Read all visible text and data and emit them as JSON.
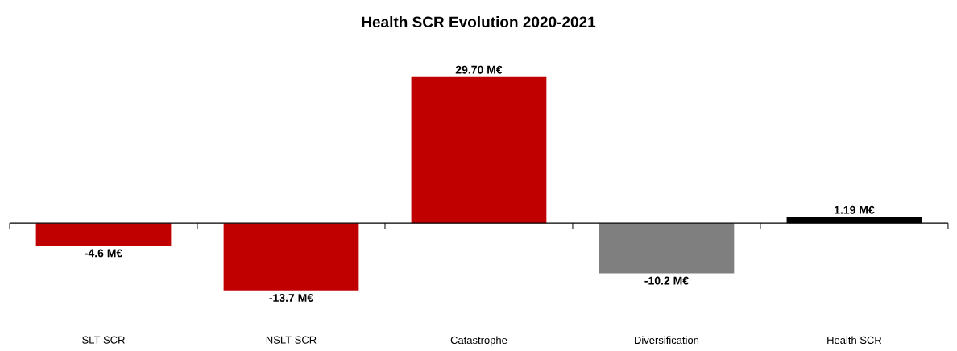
{
  "chart_data": {
    "type": "bar",
    "title": "Health SCR Evolution 2020-2021",
    "categories": [
      "SLT SCR",
      "NSLT SCR",
      "Catastrophe",
      "Diversification",
      "Health SCR"
    ],
    "values": [
      -4.6,
      -13.7,
      29.7,
      -10.2,
      1.19
    ],
    "colors": [
      "#c00000",
      "#c00000",
      "#c00000",
      "#7f7f7f",
      "#000000"
    ],
    "value_labels": [
      "-4.6 M€",
      "-13.7 M€",
      "29.70 M€",
      "-10.2 M€",
      "1.19 M€"
    ]
  }
}
